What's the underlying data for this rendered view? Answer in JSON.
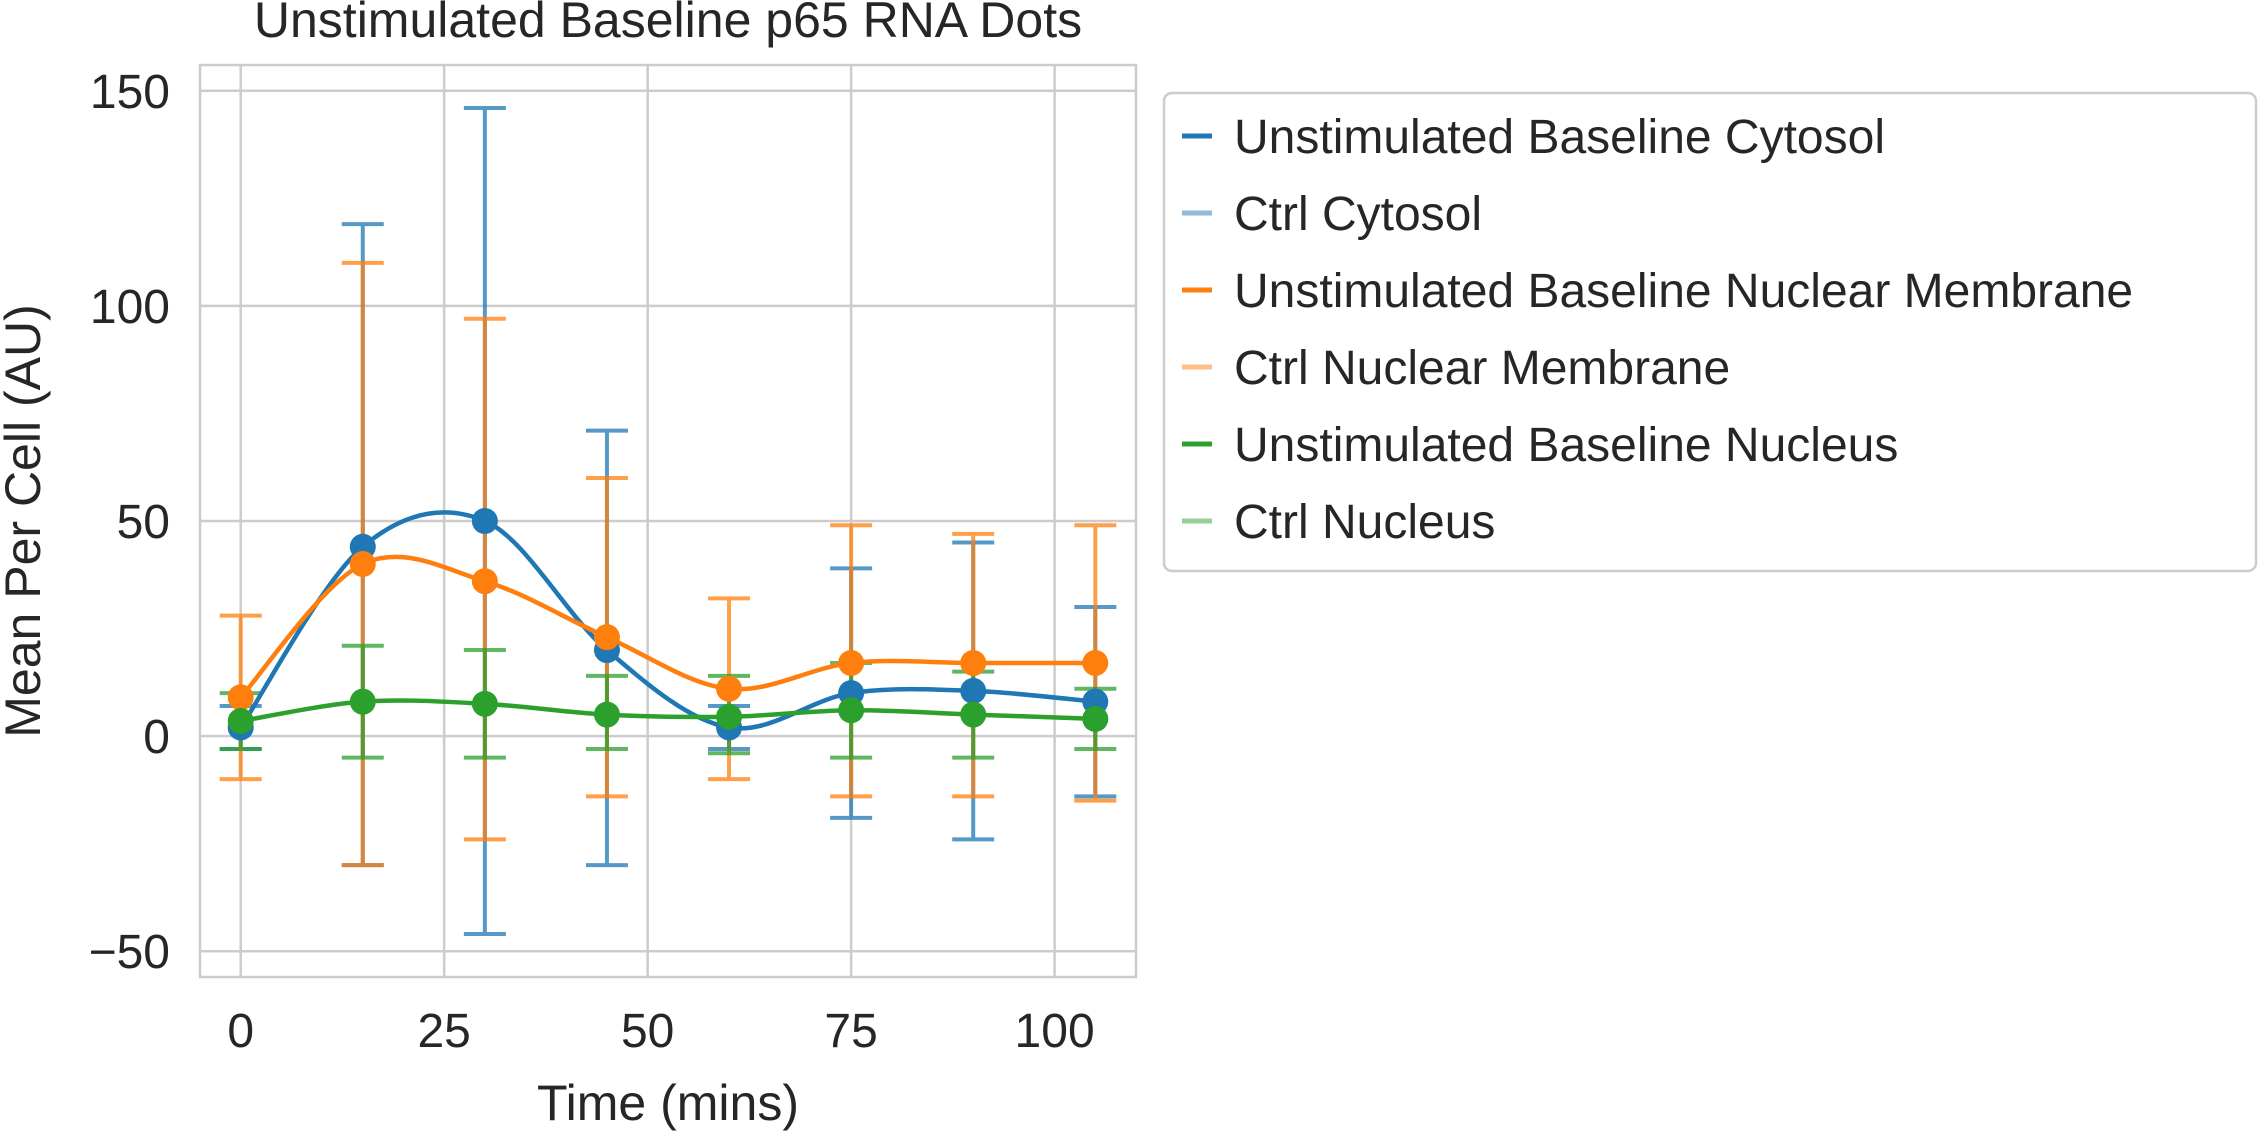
{
  "chart_data": {
    "type": "line",
    "title": "Unstimulated Baseline p65 RNA Dots",
    "xlabel": "Time (mins)",
    "ylabel": "Mean Per Cell (AU)",
    "xlim": [
      -5,
      110
    ],
    "ylim": [
      -56,
      156
    ],
    "xticks": [
      0,
      25,
      50,
      75,
      100
    ],
    "yticks": [
      -50,
      0,
      50,
      100,
      150
    ],
    "xtick_labels": [
      "0",
      "25",
      "50",
      "75",
      "100"
    ],
    "ytick_labels": [
      "−50",
      "0",
      "50",
      "100",
      "150"
    ],
    "grid": true,
    "legend_position": "outside-right",
    "x": [
      0,
      15,
      30,
      45,
      60,
      75,
      90,
      105
    ],
    "series": [
      {
        "name": "Unstimulated Baseline Cytosol",
        "color": "#1f77b4",
        "values": [
          2,
          44,
          50,
          20,
          2,
          10,
          10.5,
          8
        ],
        "err_low": [
          -3,
          -30,
          -46,
          -30,
          -3,
          -19,
          -24,
          -14
        ],
        "err_high": [
          7,
          119,
          146,
          71,
          7,
          39,
          45,
          30
        ]
      },
      {
        "name": "Unstimulated Baseline Nuclear Membrane",
        "color": "#ff7f0e",
        "values": [
          9,
          40,
          36,
          23,
          11,
          17,
          17,
          17
        ],
        "err_low": [
          -10,
          -30,
          -24,
          -14,
          -10,
          -14,
          -14,
          -15
        ],
        "err_high": [
          28,
          110,
          97,
          60,
          32,
          49,
          47,
          49
        ]
      },
      {
        "name": "Unstimulated Baseline Nucleus",
        "color": "#2ca02c",
        "values": [
          3.5,
          8,
          7.5,
          5,
          4.5,
          6,
          5,
          4
        ],
        "err_low": [
          -3,
          -5,
          -5,
          -3,
          -4,
          -5,
          -5,
          -3
        ],
        "err_high": [
          10,
          21,
          20,
          14,
          14,
          17,
          15,
          11
        ]
      }
    ],
    "legend": [
      {
        "label": "Unstimulated Baseline Cytosol",
        "color": "#1f77b4"
      },
      {
        "label": "Ctrl Cytosol",
        "color": "#8fbbd9"
      },
      {
        "label": "Unstimulated Baseline Nuclear Membrane",
        "color": "#ff7f0e"
      },
      {
        "label": "Ctrl Nuclear Membrane",
        "color": "#ffbf86"
      },
      {
        "label": "Unstimulated Baseline Nucleus",
        "color": "#2ca02c"
      },
      {
        "label": "Ctrl Nucleus",
        "color": "#95cf95"
      }
    ]
  }
}
